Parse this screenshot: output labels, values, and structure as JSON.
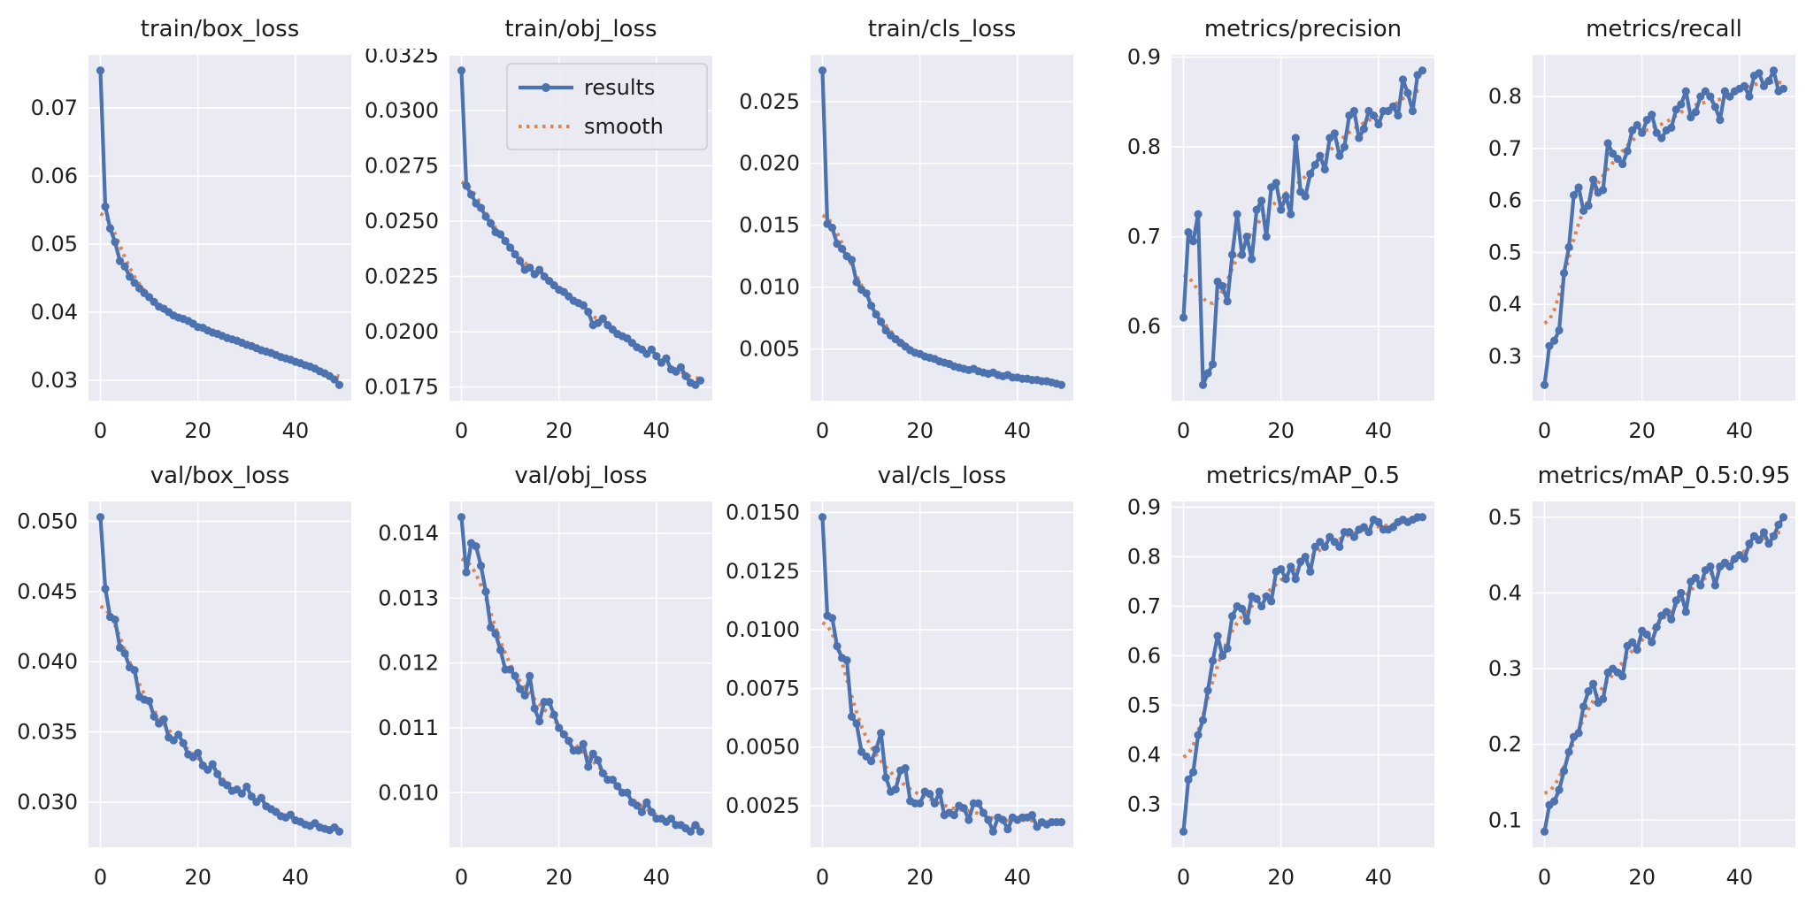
{
  "figure": {
    "background": "#ffffff",
    "plot_bg": "#eaeaf2",
    "grid_color": "#ffffff",
    "tick_text_color": "#1f1f1f",
    "title_text_color": "#1c1c1c",
    "results_color": "#4c72b0",
    "smooth_color": "#dd8452",
    "legend_bg": "rgba(234,234,242,0.85)",
    "legend_border": "#c9c9d4"
  },
  "legend": {
    "entries": [
      {
        "label": "results",
        "style": "solid-line-with-circle-marker",
        "color": "#4c72b0"
      },
      {
        "label": "smooth",
        "style": "dotted-line",
        "color": "#dd8452"
      }
    ],
    "smoothing": "gaussian_sigma_3"
  },
  "chart_data": [
    {
      "type": "line",
      "title": "train/box_loss",
      "has_legend": false,
      "x_range": [
        0,
        49
      ],
      "x_ticks": [
        "0",
        "20",
        "40"
      ],
      "y_ticks": [
        "0.03",
        "0.04",
        "0.05",
        "0.06",
        "0.07"
      ],
      "values": [
        0.0755,
        0.0555,
        0.0523,
        0.0503,
        0.0475,
        0.0467,
        0.0452,
        0.0443,
        0.0435,
        0.0428,
        0.0422,
        0.0415,
        0.0408,
        0.0405,
        0.04,
        0.0395,
        0.0392,
        0.039,
        0.0387,
        0.0383,
        0.0378,
        0.0377,
        0.0373,
        0.037,
        0.0368,
        0.0365,
        0.0362,
        0.036,
        0.0358,
        0.0355,
        0.0352,
        0.035,
        0.0347,
        0.0344,
        0.0342,
        0.034,
        0.0337,
        0.0334,
        0.0332,
        0.033,
        0.0327,
        0.0325,
        0.0322,
        0.032,
        0.0317,
        0.0313,
        0.031,
        0.0306,
        0.0301,
        0.0293
      ]
    },
    {
      "type": "line",
      "title": "train/obj_loss",
      "has_legend": true,
      "x_range": [
        0,
        49
      ],
      "x_ticks": [
        "0",
        "20",
        "40"
      ],
      "y_ticks": [
        "0.0175",
        "0.0200",
        "0.0225",
        "0.0250",
        "0.0275",
        "0.0300",
        "0.0325"
      ],
      "values": [
        0.0318,
        0.0266,
        0.0262,
        0.0258,
        0.0256,
        0.0252,
        0.0249,
        0.0245,
        0.0244,
        0.0241,
        0.0238,
        0.0235,
        0.0232,
        0.0228,
        0.0229,
        0.0226,
        0.0228,
        0.0225,
        0.0223,
        0.0221,
        0.0219,
        0.0218,
        0.0216,
        0.0214,
        0.0213,
        0.0212,
        0.0209,
        0.0203,
        0.0204,
        0.0206,
        0.0203,
        0.0201,
        0.0199,
        0.0198,
        0.0197,
        0.0195,
        0.0193,
        0.0192,
        0.019,
        0.0192,
        0.0189,
        0.0186,
        0.0188,
        0.0183,
        0.0182,
        0.0184,
        0.018,
        0.0177,
        0.0176,
        0.0178
      ]
    },
    {
      "type": "line",
      "title": "train/cls_loss",
      "has_legend": false,
      "x_range": [
        0,
        49
      ],
      "x_ticks": [
        "0",
        "20",
        "40"
      ],
      "y_ticks": [
        "0.005",
        "0.010",
        "0.015",
        "0.020",
        "0.025"
      ],
      "values": [
        0.0275,
        0.0151,
        0.0148,
        0.0135,
        0.0131,
        0.0125,
        0.0122,
        0.0104,
        0.0098,
        0.0095,
        0.0085,
        0.0078,
        0.0072,
        0.0065,
        0.0061,
        0.0058,
        0.0055,
        0.0052,
        0.0049,
        0.0047,
        0.0046,
        0.0044,
        0.0043,
        0.0042,
        0.004,
        0.0039,
        0.0038,
        0.0036,
        0.0035,
        0.0034,
        0.0033,
        0.0034,
        0.0032,
        0.0031,
        0.003,
        0.0031,
        0.0029,
        0.0028,
        0.0029,
        0.0027,
        0.0027,
        0.0026,
        0.0026,
        0.0025,
        0.0025,
        0.0024,
        0.0024,
        0.0023,
        0.0022,
        0.0021
      ]
    },
    {
      "type": "line",
      "title": "metrics/precision",
      "has_legend": false,
      "x_range": [
        0,
        49
      ],
      "x_ticks": [
        "0",
        "20",
        "40"
      ],
      "y_ticks": [
        "0.6",
        "0.7",
        "0.8",
        "0.9"
      ],
      "values": [
        0.61,
        0.705,
        0.695,
        0.725,
        0.535,
        0.548,
        0.558,
        0.65,
        0.645,
        0.628,
        0.68,
        0.725,
        0.68,
        0.7,
        0.675,
        0.73,
        0.74,
        0.7,
        0.755,
        0.76,
        0.73,
        0.745,
        0.725,
        0.81,
        0.75,
        0.745,
        0.77,
        0.78,
        0.79,
        0.775,
        0.81,
        0.815,
        0.79,
        0.8,
        0.835,
        0.84,
        0.81,
        0.82,
        0.84,
        0.835,
        0.825,
        0.84,
        0.84,
        0.845,
        0.835,
        0.875,
        0.86,
        0.84,
        0.88,
        0.885
      ]
    },
    {
      "type": "line",
      "title": "metrics/recall",
      "has_legend": false,
      "x_range": [
        0,
        49
      ],
      "x_ticks": [
        "0",
        "20",
        "40"
      ],
      "y_ticks": [
        "0.3",
        "0.4",
        "0.5",
        "0.6",
        "0.7",
        "0.8"
      ],
      "values": [
        0.245,
        0.32,
        0.33,
        0.35,
        0.46,
        0.51,
        0.61,
        0.625,
        0.58,
        0.59,
        0.64,
        0.615,
        0.62,
        0.71,
        0.69,
        0.68,
        0.67,
        0.695,
        0.735,
        0.745,
        0.73,
        0.755,
        0.765,
        0.73,
        0.72,
        0.735,
        0.74,
        0.775,
        0.785,
        0.81,
        0.76,
        0.77,
        0.8,
        0.81,
        0.8,
        0.78,
        0.755,
        0.81,
        0.8,
        0.81,
        0.815,
        0.82,
        0.8,
        0.84,
        0.845,
        0.82,
        0.83,
        0.85,
        0.81,
        0.815
      ]
    },
    {
      "type": "line",
      "title": "val/box_loss",
      "has_legend": false,
      "x_range": [
        0,
        49
      ],
      "x_ticks": [
        "0",
        "20",
        "40"
      ],
      "y_ticks": [
        "0.030",
        "0.035",
        "0.040",
        "0.045",
        "0.050"
      ],
      "values": [
        0.0503,
        0.0452,
        0.0432,
        0.043,
        0.041,
        0.0406,
        0.0396,
        0.0394,
        0.0375,
        0.0373,
        0.0372,
        0.0361,
        0.0356,
        0.0359,
        0.0346,
        0.0344,
        0.0348,
        0.0342,
        0.0334,
        0.0332,
        0.0335,
        0.0326,
        0.0323,
        0.0327,
        0.032,
        0.0314,
        0.0312,
        0.0308,
        0.0309,
        0.0306,
        0.0311,
        0.0304,
        0.03,
        0.0303,
        0.0297,
        0.0295,
        0.0293,
        0.029,
        0.0289,
        0.0291,
        0.0287,
        0.0286,
        0.0284,
        0.0283,
        0.0285,
        0.0282,
        0.0281,
        0.028,
        0.0282,
        0.0279
      ]
    },
    {
      "type": "line",
      "title": "val/obj_loss",
      "has_legend": false,
      "x_range": [
        0,
        49
      ],
      "x_ticks": [
        "0",
        "20",
        "40"
      ],
      "y_ticks": [
        "0.010",
        "0.011",
        "0.012",
        "0.013",
        "0.014"
      ],
      "values": [
        0.01425,
        0.0134,
        0.01385,
        0.0138,
        0.0135,
        0.0131,
        0.01255,
        0.01245,
        0.0122,
        0.0119,
        0.0119,
        0.0118,
        0.0116,
        0.0115,
        0.0118,
        0.0113,
        0.0111,
        0.0114,
        0.0114,
        0.0112,
        0.011,
        0.0109,
        0.0108,
        0.01065,
        0.01065,
        0.01075,
        0.0104,
        0.0106,
        0.0105,
        0.0103,
        0.0102,
        0.0102,
        0.0101,
        0.01,
        0.01,
        0.00985,
        0.0098,
        0.0097,
        0.00985,
        0.0097,
        0.0096,
        0.0096,
        0.00955,
        0.0096,
        0.0095,
        0.0095,
        0.00945,
        0.0094,
        0.0095,
        0.0094
      ]
    },
    {
      "type": "line",
      "title": "val/cls_loss",
      "has_legend": false,
      "x_range": [
        0,
        49
      ],
      "x_ticks": [
        "0",
        "20",
        "40"
      ],
      "y_ticks": [
        "0.0025",
        "0.0050",
        "0.0075",
        "0.0100",
        "0.0125",
        "0.0150"
      ],
      "values": [
        0.0148,
        0.0106,
        0.0105,
        0.0093,
        0.0088,
        0.0087,
        0.0063,
        0.006,
        0.0048,
        0.0046,
        0.0044,
        0.0049,
        0.0056,
        0.0037,
        0.0031,
        0.0032,
        0.004,
        0.0041,
        0.0027,
        0.0026,
        0.0026,
        0.0031,
        0.003,
        0.0026,
        0.0031,
        0.0021,
        0.0022,
        0.0021,
        0.0025,
        0.0024,
        0.0019,
        0.0026,
        0.0026,
        0.0022,
        0.0019,
        0.0014,
        0.002,
        0.0019,
        0.0015,
        0.002,
        0.0019,
        0.002,
        0.002,
        0.0021,
        0.0016,
        0.0018,
        0.0017,
        0.0018,
        0.0018,
        0.0018
      ]
    },
    {
      "type": "line",
      "title": "metrics/mAP_0.5",
      "has_legend": false,
      "x_range": [
        0,
        49
      ],
      "x_ticks": [
        "0",
        "20",
        "40"
      ],
      "y_ticks": [
        "0.3",
        "0.4",
        "0.5",
        "0.6",
        "0.7",
        "0.8",
        "0.9"
      ],
      "values": [
        0.245,
        0.35,
        0.365,
        0.44,
        0.47,
        0.53,
        0.59,
        0.64,
        0.6,
        0.615,
        0.68,
        0.7,
        0.695,
        0.67,
        0.72,
        0.715,
        0.7,
        0.72,
        0.71,
        0.77,
        0.775,
        0.755,
        0.78,
        0.755,
        0.79,
        0.8,
        0.77,
        0.82,
        0.83,
        0.82,
        0.84,
        0.83,
        0.82,
        0.85,
        0.85,
        0.84,
        0.855,
        0.86,
        0.85,
        0.875,
        0.87,
        0.855,
        0.855,
        0.86,
        0.87,
        0.875,
        0.87,
        0.875,
        0.88,
        0.88
      ]
    },
    {
      "type": "line",
      "title": "metrics/mAP_0.5:0.95",
      "has_legend": false,
      "x_range": [
        0,
        49
      ],
      "x_ticks": [
        "0",
        "20",
        "40"
      ],
      "y_ticks": [
        "0.1",
        "0.2",
        "0.3",
        "0.4",
        "0.5"
      ],
      "values": [
        0.085,
        0.12,
        0.125,
        0.14,
        0.165,
        0.19,
        0.21,
        0.215,
        0.25,
        0.27,
        0.28,
        0.255,
        0.26,
        0.295,
        0.3,
        0.295,
        0.29,
        0.33,
        0.335,
        0.325,
        0.35,
        0.345,
        0.335,
        0.355,
        0.37,
        0.375,
        0.365,
        0.39,
        0.4,
        0.375,
        0.415,
        0.42,
        0.41,
        0.43,
        0.435,
        0.41,
        0.435,
        0.44,
        0.435,
        0.445,
        0.45,
        0.445,
        0.465,
        0.475,
        0.47,
        0.48,
        0.465,
        0.475,
        0.49,
        0.5
      ]
    }
  ]
}
